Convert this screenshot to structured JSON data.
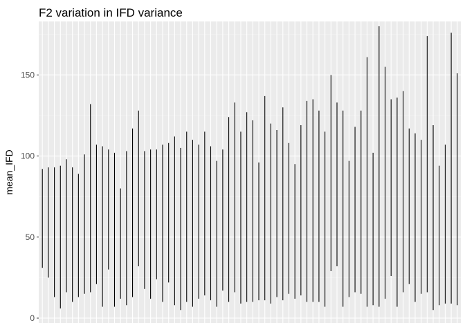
{
  "chart_data": {
    "type": "linerange",
    "title": "F2 variation in IFD variance",
    "xlabel": "",
    "ylabel": "mean_IFD",
    "x_tick_labels": false,
    "ylim": [
      -3,
      183
    ],
    "yticks": [
      0,
      50,
      100,
      150
    ],
    "grid": true,
    "legend": "none",
    "colors": {
      "panel_background": "#ebebeb",
      "grid_major": "#ffffff",
      "grid_minor": "#f5f5f5",
      "segment": "#000000",
      "tick_text": "#4d4d4d"
    },
    "ranges": [
      [
        31,
        92
      ],
      [
        25,
        93
      ],
      [
        13,
        93
      ],
      [
        6,
        94
      ],
      [
        16,
        98
      ],
      [
        10,
        93
      ],
      [
        13,
        89
      ],
      [
        15,
        101
      ],
      [
        16,
        132
      ],
      [
        21,
        107
      ],
      [
        7,
        106
      ],
      [
        30,
        104
      ],
      [
        7,
        102
      ],
      [
        12,
        80
      ],
      [
        8,
        103
      ],
      [
        13,
        117
      ],
      [
        32,
        128
      ],
      [
        18,
        103
      ],
      [
        12,
        104
      ],
      [
        24,
        104
      ],
      [
        10,
        107
      ],
      [
        22,
        108
      ],
      [
        8,
        112
      ],
      [
        5,
        105
      ],
      [
        10,
        115
      ],
      [
        7,
        110
      ],
      [
        12,
        107
      ],
      [
        14,
        115
      ],
      [
        11,
        106
      ],
      [
        7,
        97
      ],
      [
        17,
        104
      ],
      [
        10,
        124
      ],
      [
        16,
        133
      ],
      [
        9,
        115
      ],
      [
        10,
        127
      ],
      [
        10,
        122
      ],
      [
        11,
        96
      ],
      [
        11,
        137
      ],
      [
        9,
        120
      ],
      [
        13,
        116
      ],
      [
        11,
        130
      ],
      [
        15,
        108
      ],
      [
        12,
        95
      ],
      [
        14,
        119
      ],
      [
        10,
        134
      ],
      [
        10,
        135
      ],
      [
        10,
        128
      ],
      [
        7,
        115
      ],
      [
        29,
        150
      ],
      [
        32,
        133
      ],
      [
        7,
        128
      ],
      [
        13,
        97
      ],
      [
        16,
        118
      ],
      [
        15,
        128
      ],
      [
        7,
        161
      ],
      [
        8,
        102
      ],
      [
        7,
        180
      ],
      [
        12,
        155
      ],
      [
        26,
        135
      ],
      [
        7,
        136
      ],
      [
        16,
        140
      ],
      [
        21,
        117
      ],
      [
        10,
        114
      ],
      [
        15,
        110
      ],
      [
        16,
        174
      ],
      [
        5,
        119
      ],
      [
        8,
        94
      ],
      [
        9,
        107
      ],
      [
        9,
        176
      ],
      [
        8,
        151
      ]
    ]
  }
}
